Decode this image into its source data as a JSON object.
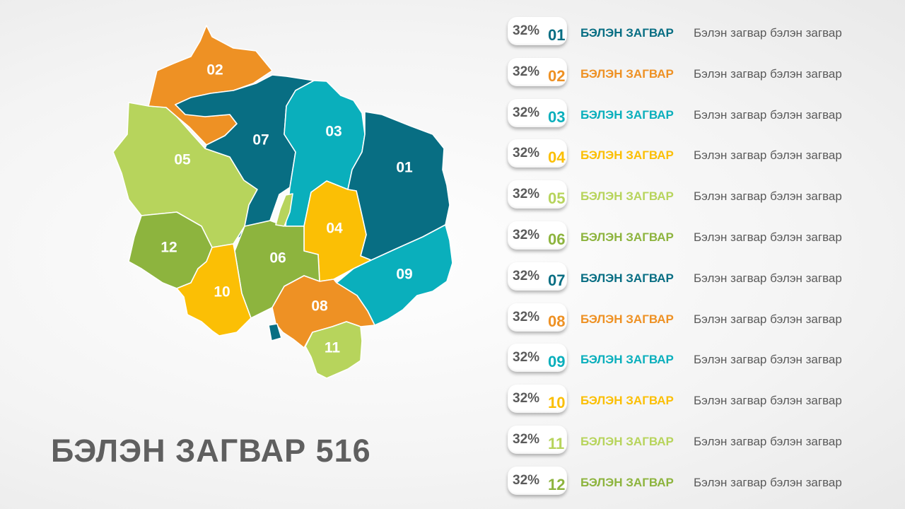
{
  "title": "БЭЛЭН ЗАГВАР 516",
  "colors": {
    "teal_dark": "#086e83",
    "teal_light": "#0aafbc",
    "orange": "#ee9124",
    "yellow": "#fbbf05",
    "green_light": "#b7d45c",
    "green": "#8db43e"
  },
  "regions": [
    {
      "label": "01",
      "color": "#086e83"
    },
    {
      "label": "02",
      "color": "#ee9124"
    },
    {
      "label": "03",
      "color": "#0aafbc"
    },
    {
      "label": "04",
      "color": "#fbbf05"
    },
    {
      "label": "05",
      "color": "#b7d45c"
    },
    {
      "label": "06",
      "color": "#8db43e"
    },
    {
      "label": "07",
      "color": "#086e83"
    },
    {
      "label": "08",
      "color": "#ee9124"
    },
    {
      "label": "09",
      "color": "#0aafbc"
    },
    {
      "label": "10",
      "color": "#fbbf05"
    },
    {
      "label": "11",
      "color": "#b7d45c"
    },
    {
      "label": "12",
      "color": "#8db43e"
    }
  ],
  "legend": [
    {
      "percent": "32%",
      "number": "01",
      "title": "БЭЛЭН ЗАГВАР",
      "desc": "Бэлэн загвар бэлэн загвар",
      "color": "#086e83"
    },
    {
      "percent": "32%",
      "number": "02",
      "title": "БЭЛЭН ЗАГВАР",
      "desc": "Бэлэн загвар бэлэн загвар",
      "color": "#ee9124"
    },
    {
      "percent": "32%",
      "number": "03",
      "title": "БЭЛЭН ЗАГВАР",
      "desc": "Бэлэн загвар бэлэн загвар",
      "color": "#0aafbc"
    },
    {
      "percent": "32%",
      "number": "04",
      "title": "БЭЛЭН ЗАГВАР",
      "desc": "Бэлэн загвар бэлэн загвар",
      "color": "#fbbf05"
    },
    {
      "percent": "32%",
      "number": "05",
      "title": "БЭЛЭН ЗАГВАР",
      "desc": "Бэлэн загвар бэлэн загвар",
      "color": "#b7d45c"
    },
    {
      "percent": "32%",
      "number": "06",
      "title": "БЭЛЭН ЗАГВАР",
      "desc": "Бэлэн загвар бэлэн загвар",
      "color": "#8db43e"
    },
    {
      "percent": "32%",
      "number": "07",
      "title": "БЭЛЭН ЗАГВАР",
      "desc": "Бэлэн загвар бэлэн загвар",
      "color": "#086e83"
    },
    {
      "percent": "32%",
      "number": "08",
      "title": "БЭЛЭН ЗАГВАР",
      "desc": "Бэлэн загвар бэлэн загвар",
      "color": "#ee9124"
    },
    {
      "percent": "32%",
      "number": "09",
      "title": "БЭЛЭН ЗАГВАР",
      "desc": "Бэлэн загвар бэлэн загвар",
      "color": "#0aafbc"
    },
    {
      "percent": "32%",
      "number": "10",
      "title": "БЭЛЭН ЗАГВАР",
      "desc": "Бэлэн загвар бэлэн загвар",
      "color": "#fbbf05"
    },
    {
      "percent": "32%",
      "number": "11",
      "title": "БЭЛЭН ЗАГВАР",
      "desc": "Бэлэн загвар бэлэн загвар",
      "color": "#b7d45c"
    },
    {
      "percent": "32%",
      "number": "12",
      "title": "БЭЛЭН ЗАГВАР",
      "desc": "Бэлэн загвар бэлэн загвар",
      "color": "#8db43e"
    }
  ]
}
